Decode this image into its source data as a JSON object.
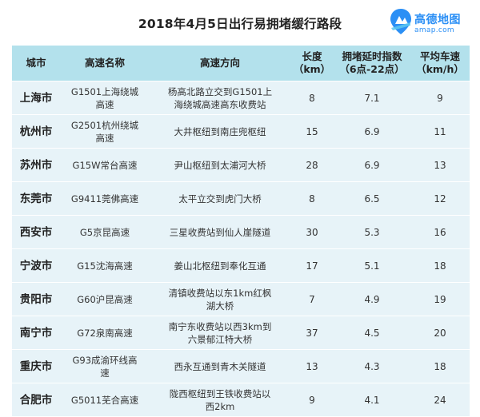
{
  "title": "2018年4月5日出行易拥堵缓行路段",
  "logo": {
    "name": "高德地图",
    "url": "amap.com",
    "icon": "amap-logo-icon",
    "color": "#2b8ff5"
  },
  "colors": {
    "header_bg": "#b3e1ec",
    "row_bg": "#e7f3f8"
  },
  "headers": {
    "city": "城市",
    "road": "高速名称",
    "direction": "高速方向",
    "length": "长度\n（km）",
    "delay": "拥堵延时指数\n（6点-22点）",
    "speed": "平均车速\n（km/h）"
  },
  "rows": [
    {
      "city": "上海市",
      "road": "G1501上海绕城\n高速",
      "direction": "杨高北路立交到G1501上\n海绕城高速高东收费站",
      "length": "8",
      "delay": "7.1",
      "speed": "9"
    },
    {
      "city": "杭州市",
      "road": "G2501杭州绕城\n高速",
      "direction": "大井枢纽到南庄兜枢纽",
      "length": "15",
      "delay": "6.9",
      "speed": "11"
    },
    {
      "city": "苏州市",
      "road": "G15W常台高速",
      "direction": "尹山枢纽到太浦河大桥",
      "length": "28",
      "delay": "6.9",
      "speed": "13"
    },
    {
      "city": "东莞市",
      "road": "G9411莞佛高速",
      "direction": "太平立交到虎门大桥",
      "length": "8",
      "delay": "6.5",
      "speed": "12"
    },
    {
      "city": "西安市",
      "road": "G5京昆高速",
      "direction": "三星收费站到仙人崖隧道",
      "length": "30",
      "delay": "5.3",
      "speed": "16"
    },
    {
      "city": "宁波市",
      "road": "G15沈海高速",
      "direction": "姜山北枢纽到奉化互通",
      "length": "17",
      "delay": "5.1",
      "speed": "18"
    },
    {
      "city": "贵阳市",
      "road": "G60沪昆高速",
      "direction": "清镇收费站以东1km红枫\n湖大桥",
      "length": "7",
      "delay": "4.9",
      "speed": "19"
    },
    {
      "city": "南宁市",
      "road": "G72泉南高速",
      "direction": "南宁东收费站以西3km到\n六景郁江特大桥",
      "length": "37",
      "delay": "4.5",
      "speed": "20"
    },
    {
      "city": "重庆市",
      "road": "G93成渝环线高\n速",
      "direction": "西永互通到青木关隧道",
      "length": "13",
      "delay": "4.3",
      "speed": "18"
    },
    {
      "city": "合肥市",
      "road": "G5011芜合高速",
      "direction": "陇西枢纽到王铁收费站以\n西2km",
      "length": "9",
      "delay": "4.1",
      "speed": "24"
    }
  ]
}
